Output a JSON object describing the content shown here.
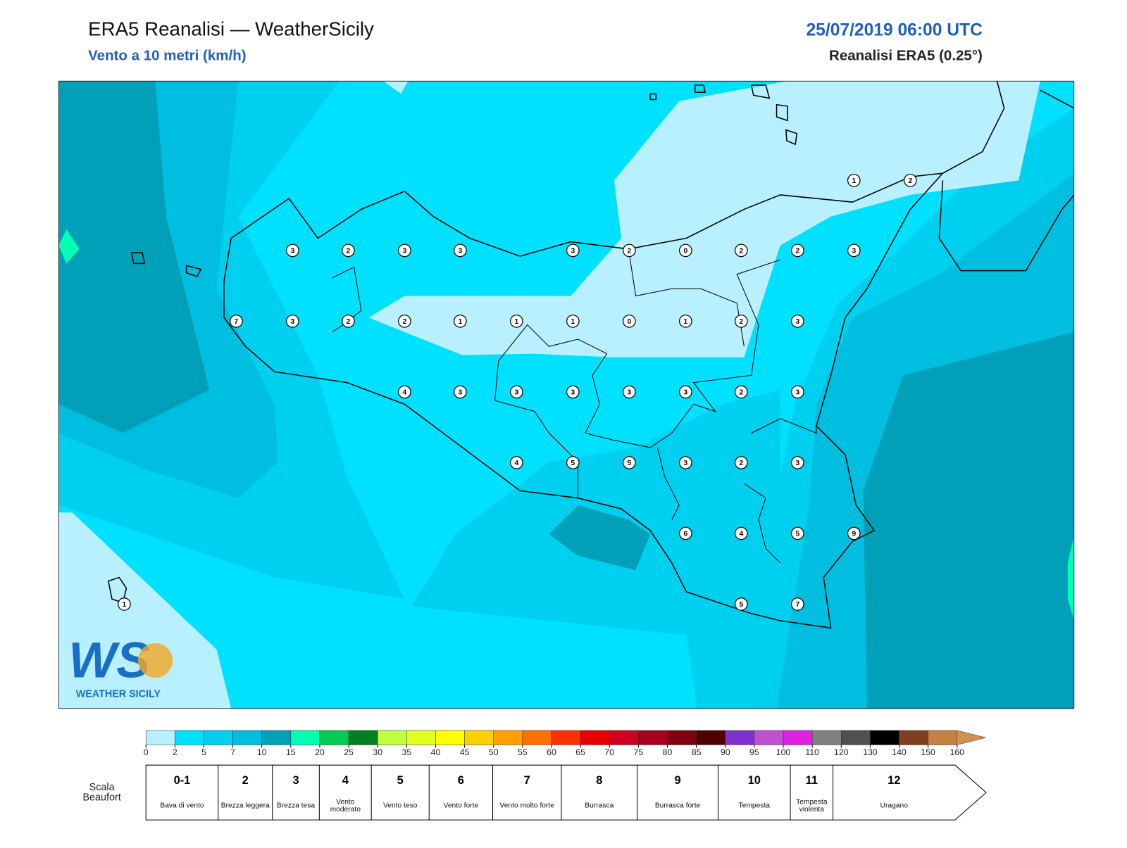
{
  "header": {
    "title": "ERA5 Reanalisi — WeatherSicily",
    "subtitle": "Vento a 10 metri (km/h)",
    "date": "25/07/2019 06:00 UTC",
    "source": "Reanalisi ERA5 (0.25°)"
  },
  "wind_values": [
    1,
    2,
    3,
    2,
    3,
    3,
    3,
    2,
    0,
    2,
    2,
    3,
    7,
    3,
    2,
    2,
    1,
    1,
    1,
    0,
    1,
    2,
    3,
    4,
    3,
    3,
    3,
    3,
    3,
    2,
    3,
    4,
    5,
    5,
    3,
    2,
    3,
    6,
    4,
    5,
    9,
    1,
    5,
    7
  ],
  "colorbar": {
    "ticks": [
      0,
      2,
      5,
      7,
      10,
      15,
      20,
      25,
      30,
      35,
      40,
      45,
      50,
      55,
      60,
      65,
      70,
      75,
      80,
      85,
      90,
      95,
      100,
      110,
      120,
      130,
      140,
      150,
      160
    ],
    "colors": [
      "#b8f0ff",
      "#00e0ff",
      "#00d0f0",
      "#00bedf",
      "#00a0b8",
      "#00ffb0",
      "#00cc50",
      "#008020",
      "#c0ff40",
      "#e0ff20",
      "#ffff00",
      "#ffd000",
      "#ffa000",
      "#ff7000",
      "#ff3000",
      "#e80000",
      "#d00020",
      "#a80020",
      "#800010",
      "#500000",
      "#8030d0",
      "#c050d0",
      "#e020e0",
      "#808080",
      "#505050",
      "#000000",
      "#804020",
      "#c88040"
    ],
    "extend_color": "#d09050"
  },
  "beaufort": {
    "label": "Scala Beaufort",
    "levels": [
      {
        "force": "0-1",
        "name": "Bava di vento"
      },
      {
        "force": 2,
        "name": "Brezza leggera"
      },
      {
        "force": 3,
        "name": "Brezza tesa"
      },
      {
        "force": 4,
        "name": "Vento moderato"
      },
      {
        "force": 5,
        "name": "Vento teso"
      },
      {
        "force": 6,
        "name": "Vento forte"
      },
      {
        "force": 7,
        "name": "Vento molto forte"
      },
      {
        "force": 8,
        "name": "Burrasca"
      },
      {
        "force": 9,
        "name": "Burrasca forte"
      },
      {
        "force": 10,
        "name": "Tempesta"
      },
      {
        "force": 11,
        "name": "Tempesta violenta"
      },
      {
        "force": 12,
        "name": "Uragano"
      }
    ]
  },
  "logo": {
    "mark": "WS",
    "name": "WEATHER SICILY"
  }
}
